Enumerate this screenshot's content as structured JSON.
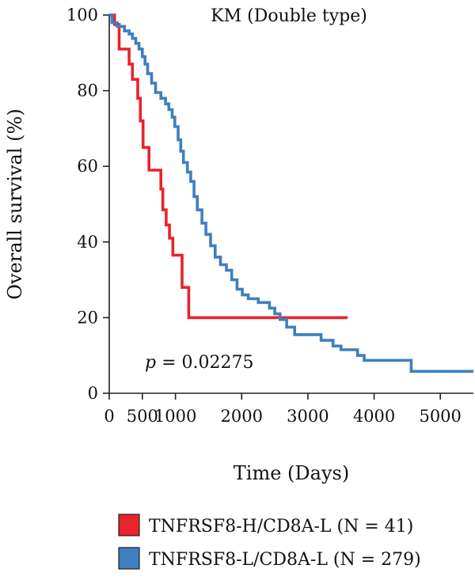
{
  "chart_data": {
    "type": "line",
    "step": true,
    "title": "KM (Double type)",
    "xlabel": "Time (Days)",
    "ylabel": "Overall survival (%)",
    "xlim": [
      0,
      5500
    ],
    "ylim": [
      0,
      100
    ],
    "x_ticks": [
      0,
      500,
      1000,
      2000,
      3000,
      4000,
      5000
    ],
    "x_tick_labels": [
      "0",
      "500",
      "1000",
      "2000",
      "3000",
      "4000",
      "5000"
    ],
    "y_ticks": [
      0,
      20,
      40,
      60,
      80,
      100
    ],
    "y_tick_labels": [
      "0",
      "20",
      "40",
      "60",
      "80",
      "100"
    ],
    "annotation": {
      "italic": "p",
      "text": " = 0.02275"
    },
    "legend_position": "bottom",
    "series": [
      {
        "name": "TNFRSF8-H/CD8A-L (N = 41)",
        "color": "#e8232a",
        "points": [
          [
            0,
            100
          ],
          [
            80,
            97.5
          ],
          [
            150,
            91
          ],
          [
            300,
            87
          ],
          [
            350,
            83
          ],
          [
            430,
            78
          ],
          [
            470,
            72
          ],
          [
            510,
            65
          ],
          [
            600,
            59
          ],
          [
            780,
            54
          ],
          [
            810,
            48.5
          ],
          [
            860,
            44.5
          ],
          [
            910,
            41
          ],
          [
            960,
            36.5
          ],
          [
            1100,
            28
          ],
          [
            1200,
            20
          ],
          [
            3600,
            20
          ]
        ]
      },
      {
        "name": "TNFRSF8-L/CD8A-L (N = 279)",
        "color": "#3d7fc0",
        "points": [
          [
            0,
            100
          ],
          [
            40,
            98
          ],
          [
            120,
            97
          ],
          [
            230,
            95.8
          ],
          [
            300,
            95
          ],
          [
            350,
            93.8
          ],
          [
            400,
            92.5
          ],
          [
            450,
            91
          ],
          [
            500,
            89
          ],
          [
            540,
            87
          ],
          [
            580,
            84.5
          ],
          [
            640,
            82
          ],
          [
            700,
            79.5
          ],
          [
            780,
            78
          ],
          [
            850,
            76.5
          ],
          [
            900,
            75
          ],
          [
            950,
            73
          ],
          [
            990,
            70.5
          ],
          [
            1040,
            67
          ],
          [
            1080,
            64
          ],
          [
            1120,
            61
          ],
          [
            1180,
            58.5
          ],
          [
            1230,
            56
          ],
          [
            1280,
            52
          ],
          [
            1330,
            48.5
          ],
          [
            1400,
            45
          ],
          [
            1460,
            42
          ],
          [
            1530,
            39
          ],
          [
            1600,
            36
          ],
          [
            1680,
            34
          ],
          [
            1770,
            32.5
          ],
          [
            1850,
            30
          ],
          [
            1930,
            27.5
          ],
          [
            2010,
            26
          ],
          [
            2100,
            25
          ],
          [
            2250,
            24
          ],
          [
            2420,
            22.5
          ],
          [
            2500,
            21
          ],
          [
            2580,
            19.5
          ],
          [
            2680,
            17.5
          ],
          [
            2800,
            15.5
          ],
          [
            3200,
            14
          ],
          [
            3380,
            12.5
          ],
          [
            3500,
            11.5
          ],
          [
            3750,
            10
          ],
          [
            3850,
            8.7
          ],
          [
            4550,
            8.7
          ],
          [
            4560,
            5.8
          ],
          [
            5500,
            5.8
          ]
        ]
      }
    ]
  }
}
